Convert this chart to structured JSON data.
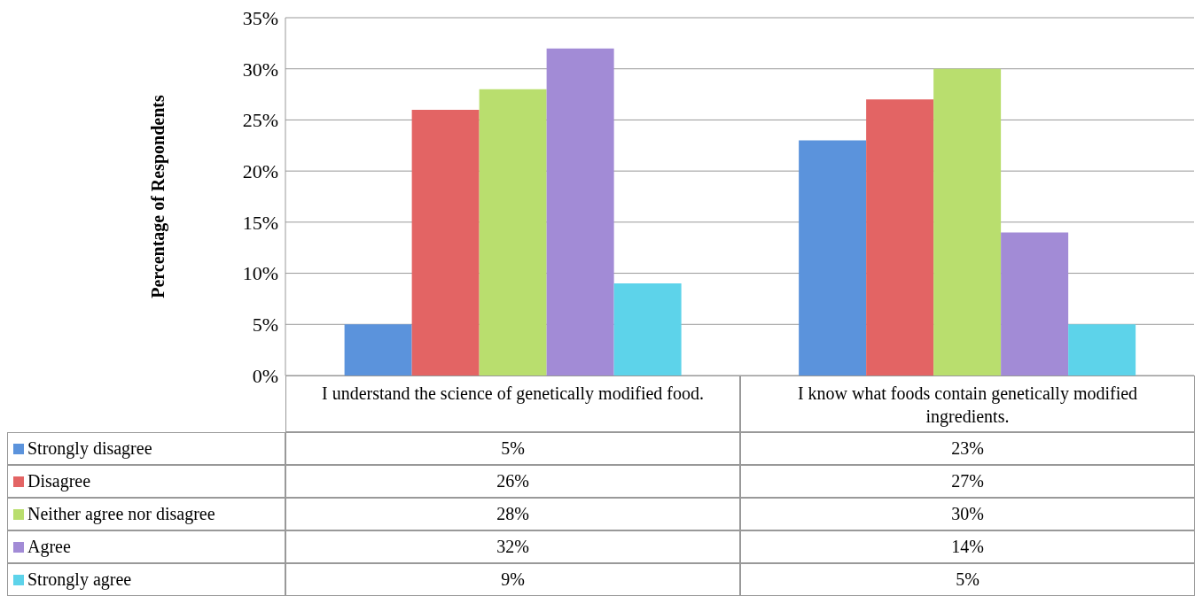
{
  "chart_data": {
    "type": "bar",
    "ylabel": "Percentage of Respondents",
    "categories": [
      "I understand the science of genetically modified food.",
      "I know what foods contain genetically modified ingredients."
    ],
    "series": [
      {
        "name": "Strongly disagree",
        "color": "#5b93dc",
        "values": [
          5,
          23
        ],
        "value_labels": [
          "5%",
          "23%"
        ]
      },
      {
        "name": "Disagree",
        "color": "#e36464",
        "values": [
          26,
          27
        ],
        "value_labels": [
          "26%",
          "27%"
        ]
      },
      {
        "name": "Neither agree nor disagree",
        "color": "#b9de6e",
        "values": [
          28,
          30
        ],
        "value_labels": [
          "28%",
          "30%"
        ]
      },
      {
        "name": " Agree",
        "color": "#a28bd6",
        "values": [
          32,
          14
        ],
        "value_labels": [
          "32%",
          "14%"
        ]
      },
      {
        "name": "Strongly agree",
        "color": "#5dd3ea",
        "values": [
          9,
          5
        ],
        "value_labels": [
          "9%",
          "5%"
        ]
      }
    ],
    "ylim": [
      0,
      35
    ],
    "yticks": [
      {
        "value": 0,
        "label": "0%"
      },
      {
        "value": 5,
        "label": "5%"
      },
      {
        "value": 10,
        "label": "10%"
      },
      {
        "value": 15,
        "label": "15%"
      },
      {
        "value": 20,
        "label": "20%"
      },
      {
        "value": 25,
        "label": "25%"
      },
      {
        "value": 30,
        "label": "30%"
      },
      {
        "value": 35,
        "label": "35%"
      }
    ],
    "grid": "y",
    "legend": "bottom left"
  }
}
